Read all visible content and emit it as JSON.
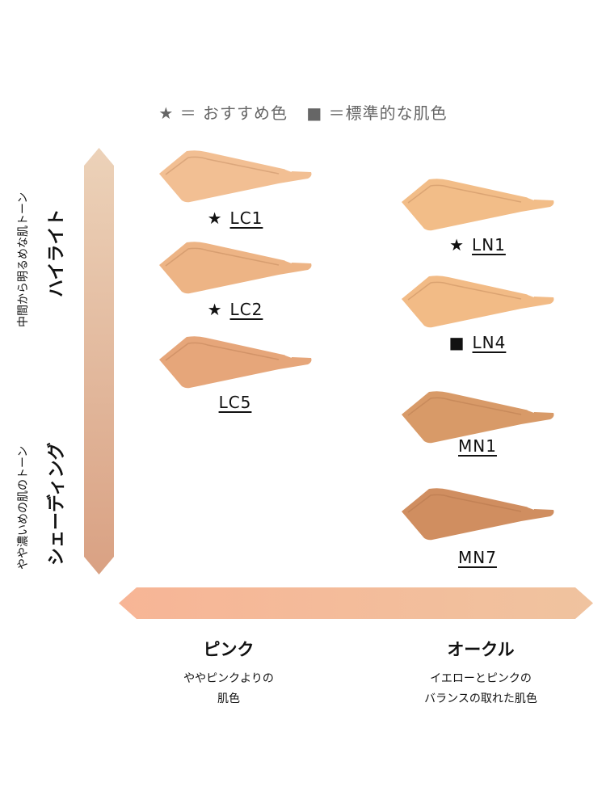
{
  "legend": {
    "star": "★ ＝ おすすめ色",
    "square": "■ ＝標準的な肌色"
  },
  "vertical_axis": {
    "top_sub": "中間から明るめな肌トーン",
    "top_title": "ハイライト",
    "bottom_sub": "やや濃いめの肌のトーン",
    "bottom_title": "シェーディング",
    "gradient": [
      "#ecd2b9",
      "#d9a183"
    ]
  },
  "horizontal_axis": {
    "left_title": "ピンク",
    "left_desc1": "ややピンクよりの",
    "left_desc2": "肌色",
    "right_title": "オークル",
    "right_desc1": "イエローとピンクの",
    "right_desc2": "バランスの取れた肌色",
    "gradient": [
      "#f7b596",
      "#f0c39f"
    ]
  },
  "shades": [
    {
      "code": "LC1",
      "mark": "★",
      "color": "#f2bf93"
    },
    {
      "code": "LC2",
      "mark": "★",
      "color": "#edb485"
    },
    {
      "code": "LC5",
      "mark": "",
      "color": "#e6a67a"
    },
    {
      "code": "LN1",
      "mark": "★",
      "color": "#f2bd88"
    },
    {
      "code": "LN4",
      "mark": "■",
      "color": "#f2bb86"
    },
    {
      "code": "MN1",
      "mark": "",
      "color": "#d89a68"
    },
    {
      "code": "MN7",
      "mark": "",
      "color": "#d08e60"
    }
  ]
}
